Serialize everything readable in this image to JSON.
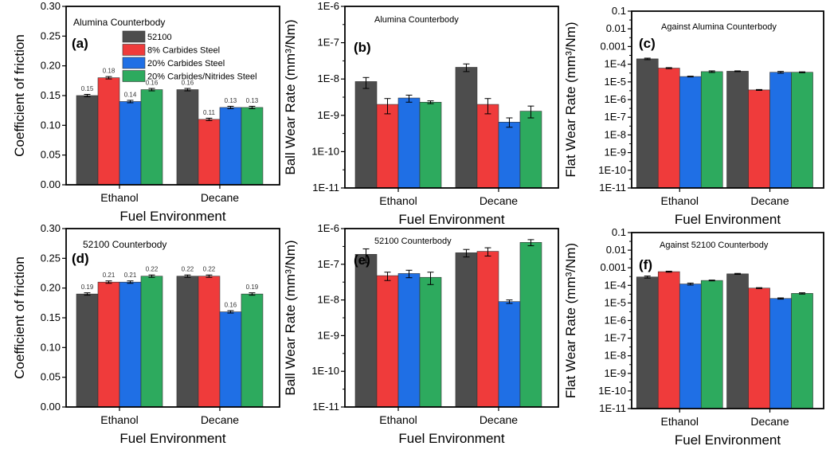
{
  "colors": {
    "s52100": "#4d4d4d",
    "s8": "#ef3b3b",
    "s20": "#1f6fe5",
    "s20n": "#2daa5e"
  },
  "legend": {
    "panel": 0,
    "placement": "top-right",
    "entries": [
      "52100",
      "8% Carbides Steel",
      "20% Carbides Steel",
      "20% Carbides/Nitrides Steel"
    ]
  },
  "chart_data": [
    {
      "panel_label": "(a)",
      "type": "bar",
      "scale": "linear",
      "title": "Alumina Counterbody",
      "xlabel": "Fuel Environment",
      "ylabel": "Coefficient of friction",
      "ylim": [
        0,
        0.3
      ],
      "yticks": [
        "0.00",
        "0.05",
        "0.10",
        "0.15",
        "0.20",
        "0.25",
        "0.30"
      ],
      "categories": [
        "Ethanol",
        "Decane"
      ],
      "series": [
        {
          "name": "52100",
          "values": [
            0.15,
            0.16
          ],
          "err": [
            0.002,
            0.002
          ],
          "labels": [
            "0.15",
            "0.16"
          ]
        },
        {
          "name": "8% Carbides Steel",
          "values": [
            0.18,
            0.11
          ],
          "err": [
            0.002,
            0.002
          ],
          "labels": [
            "0.18",
            "0.11"
          ]
        },
        {
          "name": "20% Carbides Steel",
          "values": [
            0.14,
            0.13
          ],
          "err": [
            0.002,
            0.002
          ],
          "labels": [
            "0.14",
            "0.13"
          ]
        },
        {
          "name": "20% Carbides/Nitrides Steel",
          "values": [
            0.16,
            0.13
          ],
          "err": [
            0.002,
            0.002
          ],
          "labels": [
            "0.16",
            "0.13"
          ]
        }
      ]
    },
    {
      "panel_label": "(b)",
      "type": "bar",
      "scale": "log",
      "title": "Alumina Counterbody",
      "xlabel": "Fuel Environment",
      "ylabel": "Ball Wear Rate (mm³/Nm)",
      "ylim": [
        1e-11,
        1e-06
      ],
      "yticks": [
        "1E-11",
        "1E-10",
        "1E-9",
        "1E-8",
        "1E-7",
        "1E-6"
      ],
      "categories": [
        "Ethanol",
        "Decane"
      ],
      "series": [
        {
          "name": "52100",
          "values": [
            8.5e-09,
            2.1e-08
          ],
          "err_low": [
            5.5e-09,
            1.6e-08
          ],
          "err_high": [
            1.1e-08,
            2.6e-08
          ]
        },
        {
          "name": "8% Carbides Steel",
          "values": [
            2e-09,
            2e-09
          ],
          "err_low": [
            1.1e-09,
            1.1e-09
          ],
          "err_high": [
            2.9e-09,
            2.9e-09
          ]
        },
        {
          "name": "20% Carbides Steel",
          "values": [
            3e-09,
            6.5e-10
          ],
          "err_low": [
            2.3e-09,
            4.7e-10
          ],
          "err_high": [
            3.6e-09,
            8.5e-10
          ]
        },
        {
          "name": "20% Carbides/Nitrides Steel",
          "values": [
            2.3e-09,
            1.3e-09
          ],
          "err_low": [
            2.1e-09,
            8.5e-10
          ],
          "err_high": [
            2.5e-09,
            1.8e-09
          ]
        }
      ]
    },
    {
      "panel_label": "(c)",
      "type": "bar",
      "scale": "log",
      "title": "Against Alumina Counterbody",
      "xlabel": "Fuel Environment",
      "ylabel": "Flat Wear Rate (mm³/Nm)",
      "ylim": [
        1e-11,
        0.1
      ],
      "yticks": [
        "1E-11",
        "1E-10",
        "1E-9",
        "1E-8",
        "1E-7",
        "1E-6",
        "1E-5",
        "1E-4",
        "0.001",
        "0.01",
        "0.1"
      ],
      "categories": [
        "Ethanol",
        "Decane"
      ],
      "series": [
        {
          "name": "52100",
          "values": [
            0.0002,
            4e-05
          ],
          "err_low": [
            0.00018,
            3.8e-05
          ],
          "err_high": [
            0.00022,
            4.2e-05
          ]
        },
        {
          "name": "8% Carbides Steel",
          "values": [
            6e-05,
            3.5e-06
          ],
          "err_low": [
            5.6e-05,
            3.3e-06
          ],
          "err_high": [
            6.4e-05,
            3.7e-06
          ]
        },
        {
          "name": "20% Carbides Steel",
          "values": [
            2e-05,
            3.5e-05
          ],
          "err_low": [
            1.9e-05,
            3.1e-05
          ],
          "err_high": [
            2.1e-05,
            3.9e-05
          ]
        },
        {
          "name": "20% Carbides/Nitrides Steel",
          "values": [
            3.8e-05,
            3.5e-05
          ],
          "err_low": [
            3.4e-05,
            3.3e-05
          ],
          "err_high": [
            4.2e-05,
            3.7e-05
          ]
        }
      ]
    },
    {
      "panel_label": "(d)",
      "type": "bar",
      "scale": "linear",
      "title": "52100 Counterbody",
      "xlabel": "Fuel Environment",
      "ylabel": "Coefficient of friction",
      "ylim": [
        0,
        0.3
      ],
      "yticks": [
        "0.00",
        "0.05",
        "0.10",
        "0.15",
        "0.20",
        "0.25",
        "0.30"
      ],
      "categories": [
        "Ethanol",
        "Decane"
      ],
      "series": [
        {
          "name": "52100",
          "values": [
            0.19,
            0.22
          ],
          "err": [
            0.002,
            0.002
          ],
          "labels": [
            "0.19",
            "0.22"
          ]
        },
        {
          "name": "8% Carbides Steel",
          "values": [
            0.21,
            0.22
          ],
          "err": [
            0.002,
            0.002
          ],
          "labels": [
            "0.21",
            "0.22"
          ]
        },
        {
          "name": "20% Carbides Steel",
          "values": [
            0.21,
            0.16
          ],
          "err": [
            0.002,
            0.002
          ],
          "labels": [
            "0.21",
            "0.16"
          ]
        },
        {
          "name": "20% Carbides/Nitrides Steel",
          "values": [
            0.22,
            0.19
          ],
          "err": [
            0.002,
            0.002
          ],
          "labels": [
            "0.22",
            "0.19"
          ]
        }
      ]
    },
    {
      "panel_label": "(e)",
      "type": "bar",
      "scale": "log",
      "title": "52100 Counterbody",
      "xlabel": "Fuel Environment",
      "ylabel": "Ball Wear Rate (mm³/Nm)",
      "ylim": [
        1e-11,
        1e-06
      ],
      "yticks": [
        "1E-11",
        "1E-10",
        "1E-9",
        "1E-8",
        "1E-7",
        "1E-6"
      ],
      "categories": [
        "Ethanol",
        "Decane"
      ],
      "series": [
        {
          "name": "52100",
          "values": [
            1.9e-07,
            2.1e-07
          ],
          "err_low": [
            1.1e-07,
            1.6e-07
          ],
          "err_high": [
            2.7e-07,
            2.6e-07
          ]
        },
        {
          "name": "8% Carbides Steel",
          "values": [
            4.8e-08,
            2.3e-07
          ],
          "err_low": [
            3.5e-08,
            1.7e-07
          ],
          "err_high": [
            6e-08,
            2.9e-07
          ]
        },
        {
          "name": "20% Carbides Steel",
          "values": [
            5.5e-08,
            9e-09
          ],
          "err_low": [
            4.2e-08,
            8e-09
          ],
          "err_high": [
            6.8e-08,
            1e-08
          ]
        },
        {
          "name": "20% Carbides/Nitrides Steel",
          "values": [
            4.3e-08,
            4.1e-07
          ],
          "err_low": [
            2.7e-08,
            3.3e-07
          ],
          "err_high": [
            6e-08,
            4.9e-07
          ]
        }
      ]
    },
    {
      "panel_label": "(f)",
      "type": "bar",
      "scale": "log",
      "title": "Against 52100 Counterbody",
      "xlabel": "Fuel Environment",
      "ylabel": "Flat Wear Rate (mm³/Nm)",
      "ylim": [
        1e-11,
        0.1
      ],
      "yticks": [
        "1E-11",
        "1E-10",
        "1E-9",
        "1E-8",
        "1E-7",
        "1E-6",
        "1E-5",
        "1E-4",
        "0.001",
        "0.01",
        "0.1"
      ],
      "categories": [
        "Ethanol",
        "Decane"
      ],
      "series": [
        {
          "name": "52100",
          "values": [
            0.0003,
            0.00045
          ],
          "err_low": [
            0.00026,
            0.00042
          ],
          "err_high": [
            0.00034,
            0.00048
          ]
        },
        {
          "name": "8% Carbides Steel",
          "values": [
            0.0006,
            7e-05
          ],
          "err_low": [
            0.00056,
            6.6e-05
          ],
          "err_high": [
            0.00064,
            7.4e-05
          ]
        },
        {
          "name": "20% Carbides Steel",
          "values": [
            0.00012,
            1.8e-05
          ],
          "err_low": [
            0.000105,
            1.65e-05
          ],
          "err_high": [
            0.000135,
            1.95e-05
          ]
        },
        {
          "name": "20% Carbides/Nitrides Steel",
          "values": [
            0.00019,
            3.5e-05
          ],
          "err_low": [
            0.00018,
            3.2e-05
          ],
          "err_high": [
            0.0002,
            3.8e-05
          ]
        }
      ]
    }
  ]
}
